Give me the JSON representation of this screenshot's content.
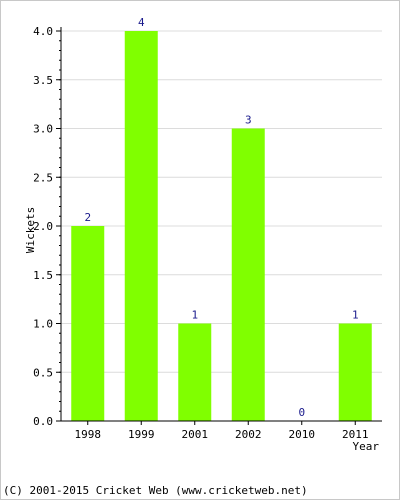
{
  "chart_data": {
    "type": "bar",
    "categories": [
      "1998",
      "1999",
      "2001",
      "2002",
      "2010",
      "2011"
    ],
    "values": [
      2,
      4,
      1,
      3,
      0,
      1
    ],
    "data_labels": [
      "2",
      "4",
      "1",
      "3",
      "0",
      "1"
    ],
    "title": "",
    "xlabel": "Year",
    "ylabel": "Wickets",
    "ylim": [
      0,
      4
    ],
    "yticks": [
      "0.0",
      "0.5",
      "1.0",
      "1.5",
      "2.0",
      "2.5",
      "3.0",
      "3.5",
      "4.0"
    ],
    "grid": true,
    "bar_color": "#80ff00"
  },
  "footer": "(C) 2001-2015 Cricket Web (www.cricketweb.net)"
}
